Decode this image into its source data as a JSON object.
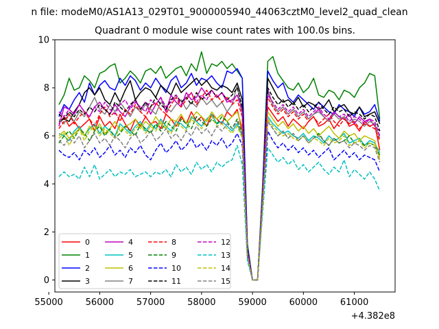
{
  "suptitle": "n file: modeM0/AS1A13_029T01_9000005940_44063cztM0_level2_quad_clean",
  "chart_data": {
    "type": "line",
    "title": "Quadrant 0 module wise count rates with 100.0s bins.",
    "xlabel": "",
    "ylabel": "",
    "x_offset_label": "+4.382e8",
    "xlim": [
      55120,
      61800
    ],
    "ylim": [
      -0.5,
      10
    ],
    "xticks": [
      55000,
      56000,
      57000,
      58000,
      59000,
      60000,
      61000
    ],
    "xtick_labels": [
      "55000",
      "56000",
      "57000",
      "58000",
      "59000",
      "60000",
      "61000"
    ],
    "yticks": [
      0,
      2,
      4,
      6,
      8,
      10
    ],
    "ytick_labels": [
      "0",
      "2",
      "4",
      "6",
      "8",
      "10"
    ],
    "grid": false,
    "legend_position": "lower-left",
    "x": [
      55200,
      55300,
      55400,
      55500,
      55600,
      55700,
      55800,
      55900,
      56000,
      56100,
      56200,
      56300,
      56400,
      56500,
      56600,
      56700,
      56800,
      56900,
      57000,
      57100,
      57200,
      57300,
      57400,
      57500,
      57600,
      57700,
      57800,
      57900,
      58000,
      58100,
      58200,
      58300,
      58400,
      58500,
      58600,
      58700,
      58800,
      58900,
      59000,
      59100,
      59200,
      59300,
      59400,
      59500,
      59600,
      59700,
      59800,
      59900,
      60000,
      60100,
      60200,
      60300,
      60400,
      60500,
      60600,
      60700,
      60800,
      60900,
      61000,
      61100,
      61200,
      61300,
      61400,
      61500
    ],
    "series": [
      {
        "name": "0",
        "color": "#ff0000",
        "dash": false,
        "values": [
          6.5,
          6.8,
          6.4,
          6.6,
          6.3,
          6.5,
          6.7,
          6.2,
          6.8,
          6.4,
          6.6,
          6.3,
          6.9,
          6.5,
          6.2,
          6.7,
          6.4,
          6.8,
          6.5,
          6.6,
          6.3,
          6.9,
          6.7,
          6.4,
          6.8,
          6.5,
          7.0,
          6.6,
          6.8,
          6.4,
          6.9,
          6.7,
          6.5,
          7.0,
          6.8,
          7.1,
          6.2,
          1.2,
          0.0,
          0.0,
          3.5,
          7.2,
          6.9,
          6.6,
          6.8,
          6.4,
          6.7,
          6.5,
          6.3,
          6.6,
          6.8,
          6.4,
          6.5,
          6.7,
          6.3,
          6.6,
          6.8,
          6.4,
          6.5,
          6.2,
          6.6,
          6.4,
          6.5,
          5.4
        ]
      },
      {
        "name": "1",
        "color": "#008000",
        "dash": false,
        "values": [
          7.3,
          7.7,
          8.4,
          7.9,
          8.0,
          8.5,
          8.3,
          8.0,
          8.6,
          8.7,
          8.9,
          9.0,
          8.2,
          8.4,
          8.7,
          8.5,
          8.2,
          8.7,
          8.8,
          8.6,
          8.9,
          8.4,
          8.6,
          8.8,
          8.9,
          8.5,
          9.0,
          8.7,
          9.5,
          8.6,
          9.0,
          8.9,
          9.1,
          8.8,
          9.0,
          8.7,
          8.4,
          1.5,
          0.0,
          0.0,
          4.0,
          9.1,
          9.3,
          8.6,
          8.3,
          8.0,
          7.9,
          8.2,
          7.8,
          8.0,
          8.4,
          7.7,
          7.6,
          7.9,
          7.8,
          7.5,
          7.9,
          7.8,
          7.6,
          8.0,
          8.2,
          8.6,
          8.5,
          6.7
        ]
      },
      {
        "name": "2",
        "color": "#0000ff",
        "dash": false,
        "values": [
          6.8,
          7.3,
          7.1,
          7.5,
          7.8,
          7.4,
          8.2,
          7.7,
          8.1,
          8.3,
          8.0,
          7.9,
          8.4,
          8.1,
          8.5,
          8.3,
          7.9,
          8.2,
          8.0,
          8.4,
          8.1,
          7.8,
          8.3,
          8.5,
          8.0,
          8.2,
          8.6,
          8.1,
          8.4,
          8.3,
          8.5,
          8.2,
          8.0,
          8.7,
          8.6,
          8.8,
          8.4,
          1.4,
          0.0,
          0.0,
          3.8,
          8.7,
          8.3,
          8.0,
          8.2,
          7.6,
          7.4,
          7.7,
          7.5,
          7.3,
          7.1,
          7.4,
          7.2,
          7.0,
          6.9,
          7.3,
          7.1,
          7.0,
          6.8,
          7.2,
          6.9,
          7.0,
          7.3,
          6.6
        ]
      },
      {
        "name": "3",
        "color": "#000000",
        "dash": false,
        "values": [
          6.6,
          6.7,
          6.6,
          7.0,
          7.3,
          7.8,
          8.0,
          7.7,
          8.0,
          7.5,
          7.3,
          7.8,
          7.4,
          7.9,
          8.3,
          7.5,
          7.8,
          8.0,
          7.9,
          7.6,
          8.1,
          7.9,
          7.7,
          8.2,
          7.8,
          8.0,
          8.2,
          8.4,
          8.1,
          8.3,
          8.0,
          7.9,
          8.1,
          8.0,
          7.8,
          8.2,
          7.5,
          1.0,
          0.0,
          0.0,
          3.3,
          8.4,
          8.0,
          7.6,
          7.4,
          7.5,
          7.3,
          7.6,
          7.2,
          7.4,
          7.3,
          7.1,
          7.2,
          7.5,
          7.0,
          7.2,
          7.3,
          7.0,
          6.9,
          7.2,
          6.8,
          6.9,
          7.0,
          6.5
        ]
      },
      {
        "name": "4",
        "color": "#bf00bf",
        "dash": false,
        "values": [
          6.4,
          7.2,
          7.1,
          6.9,
          7.3,
          7.0,
          6.8,
          7.2,
          7.4,
          7.1,
          6.9,
          7.3,
          7.0,
          6.8,
          7.2,
          7.5,
          7.1,
          7.4,
          6.9,
          7.3,
          7.6,
          7.0,
          7.7,
          7.4,
          7.2,
          7.8,
          7.5,
          7.6,
          8.0,
          7.7,
          7.9,
          7.6,
          7.8,
          7.4,
          7.5,
          7.7,
          7.1,
          1.1,
          0.0,
          0.0,
          3.4,
          7.9,
          7.3,
          7.0,
          7.2,
          6.9,
          7.1,
          6.8,
          7.0,
          6.7,
          6.9,
          7.1,
          6.8,
          6.6,
          7.0,
          6.8,
          6.7,
          6.9,
          6.5,
          6.8,
          6.6,
          6.7,
          6.4,
          6.2
        ]
      },
      {
        "name": "5",
        "color": "#00bfbf",
        "dash": false,
        "values": [
          6.1,
          6.0,
          5.8,
          6.2,
          6.4,
          6.0,
          6.3,
          6.5,
          6.1,
          6.4,
          6.2,
          6.0,
          6.5,
          6.3,
          6.1,
          6.4,
          6.6,
          6.2,
          6.5,
          6.3,
          6.7,
          6.4,
          6.2,
          6.6,
          6.5,
          6.3,
          6.8,
          6.6,
          6.4,
          6.7,
          6.9,
          6.5,
          6.6,
          6.4,
          6.2,
          6.5,
          6.0,
          1.0,
          0.0,
          0.0,
          3.2,
          6.8,
          6.5,
          6.3,
          6.1,
          6.2,
          6.0,
          5.9,
          6.1,
          5.8,
          6.0,
          5.9,
          5.7,
          6.0,
          5.8,
          5.9,
          6.1,
          5.7,
          5.8,
          5.9,
          5.6,
          5.8,
          5.7,
          5.3
        ]
      },
      {
        "name": "6",
        "color": "#bfbf00",
        "dash": false,
        "values": [
          6.0,
          6.2,
          5.9,
          6.1,
          6.3,
          6.0,
          6.4,
          6.2,
          6.5,
          6.1,
          6.3,
          6.6,
          6.2,
          6.4,
          6.5,
          6.7,
          6.3,
          6.6,
          6.4,
          6.8,
          6.5,
          6.3,
          6.7,
          6.6,
          6.9,
          6.5,
          6.7,
          7.0,
          6.8,
          6.6,
          7.0,
          6.7,
          6.9,
          6.6,
          6.8,
          7.0,
          6.4,
          1.0,
          0.0,
          0.0,
          3.3,
          7.0,
          6.7,
          6.4,
          6.6,
          6.3,
          6.5,
          6.2,
          6.4,
          6.1,
          6.3,
          6.0,
          6.2,
          6.4,
          6.1,
          5.9,
          6.2,
          6.0,
          6.1,
          5.8,
          6.0,
          5.9,
          5.8,
          5.0
        ]
      },
      {
        "name": "7",
        "color": "#808080",
        "dash": false,
        "values": [
          6.7,
          6.5,
          6.9,
          6.6,
          7.0,
          6.8,
          7.2,
          7.6,
          7.1,
          6.9,
          7.3,
          7.0,
          7.4,
          7.1,
          6.8,
          7.2,
          7.0,
          7.3,
          7.1,
          6.9,
          7.4,
          7.2,
          7.0,
          7.3,
          7.5,
          7.1,
          7.4,
          7.2,
          7.6,
          7.3,
          7.5,
          7.2,
          7.4,
          7.0,
          7.3,
          8.1,
          6.9,
          1.2,
          0.0,
          0.0,
          3.6,
          7.8,
          7.3,
          7.0,
          7.2,
          6.9,
          7.1,
          6.8,
          7.0,
          6.7,
          6.9,
          7.0,
          6.8,
          6.6,
          6.9,
          6.7,
          6.8,
          6.5,
          6.7,
          6.6,
          6.4,
          6.6,
          6.5,
          5.9
        ]
      },
      {
        "name": "8",
        "color": "#ff0000",
        "dash": true,
        "values": [
          6.3,
          6.6,
          6.9,
          6.5,
          6.8,
          7.0,
          6.7,
          6.4,
          6.9,
          7.2,
          6.8,
          7.0,
          6.6,
          7.1,
          6.9,
          7.3,
          7.0,
          6.8,
          7.2,
          7.4,
          7.1,
          6.9,
          7.3,
          7.6,
          7.2,
          7.5,
          7.8,
          7.3,
          7.6,
          7.9,
          7.5,
          7.7,
          7.4,
          7.6,
          7.3,
          7.5,
          6.8,
          1.1,
          0.0,
          0.0,
          3.4,
          7.6,
          7.2,
          6.9,
          7.1,
          6.8,
          7.0,
          6.7,
          6.9,
          6.6,
          6.8,
          6.5,
          6.7,
          6.9,
          6.6,
          6.4,
          6.7,
          6.5,
          6.6,
          6.3,
          6.5,
          6.4,
          6.3,
          5.8
        ]
      },
      {
        "name": "9",
        "color": "#008000",
        "dash": true,
        "values": [
          5.7,
          6.0,
          6.2,
          5.9,
          6.3,
          6.1,
          5.8,
          6.2,
          6.4,
          6.0,
          6.3,
          5.9,
          6.1,
          6.4,
          6.2,
          6.0,
          6.5,
          6.3,
          6.1,
          6.5,
          6.2,
          6.6,
          6.4,
          6.2,
          6.7,
          6.5,
          6.3,
          6.8,
          6.6,
          6.4,
          6.7,
          6.5,
          6.8,
          6.6,
          6.3,
          6.7,
          6.1,
          1.0,
          0.0,
          0.0,
          3.2,
          6.6,
          6.3,
          6.0,
          6.2,
          5.9,
          6.1,
          5.8,
          6.0,
          5.7,
          5.9,
          6.1,
          5.8,
          5.6,
          5.9,
          5.7,
          5.8,
          6.0,
          5.7,
          5.8,
          5.6,
          5.7,
          5.6,
          5.2
        ]
      },
      {
        "name": "10",
        "color": "#0000ff",
        "dash": true,
        "values": [
          5.4,
          5.2,
          5.1,
          5.3,
          5.0,
          5.4,
          5.2,
          5.5,
          5.1,
          5.3,
          5.6,
          5.2,
          5.4,
          5.1,
          5.5,
          5.3,
          5.6,
          5.2,
          5.0,
          5.4,
          5.7,
          5.3,
          5.5,
          5.8,
          5.4,
          5.6,
          5.9,
          5.5,
          5.7,
          5.4,
          5.8,
          5.6,
          5.9,
          5.5,
          5.7,
          6.1,
          5.6,
          0.9,
          0.0,
          0.0,
          3.0,
          6.2,
          5.8,
          5.5,
          5.7,
          5.4,
          5.6,
          5.3,
          5.5,
          5.2,
          5.4,
          5.1,
          5.3,
          5.5,
          5.0,
          5.2,
          5.4,
          5.1,
          5.3,
          5.0,
          5.2,
          5.1,
          5.0,
          4.5
        ]
      },
      {
        "name": "11",
        "color": "#000000",
        "dash": true,
        "values": [
          6.9,
          6.7,
          7.0,
          6.8,
          7.1,
          6.9,
          7.2,
          7.0,
          7.3,
          7.1,
          6.9,
          7.4,
          7.2,
          7.0,
          7.3,
          7.5,
          7.1,
          7.4,
          7.2,
          7.6,
          7.3,
          7.1,
          7.5,
          7.7,
          7.4,
          7.6,
          7.3,
          7.8,
          7.5,
          7.7,
          7.9,
          7.6,
          7.8,
          7.5,
          7.7,
          8.0,
          7.2,
          1.3,
          0.0,
          0.0,
          3.6,
          8.0,
          7.6,
          7.3,
          7.5,
          7.2,
          7.4,
          7.1,
          7.3,
          7.0,
          7.2,
          7.4,
          7.1,
          6.9,
          7.2,
          7.0,
          7.1,
          6.8,
          7.0,
          6.9,
          6.7,
          6.9,
          6.8,
          6.2
        ]
      },
      {
        "name": "12",
        "color": "#bf00bf",
        "dash": true,
        "values": [
          7.0,
          6.8,
          7.1,
          6.9,
          7.3,
          7.0,
          6.8,
          7.2,
          7.0,
          7.4,
          7.1,
          6.9,
          7.3,
          7.5,
          7.1,
          7.4,
          7.2,
          7.0,
          7.5,
          7.3,
          7.6,
          7.2,
          7.4,
          7.7,
          7.3,
          7.6,
          7.8,
          7.4,
          7.7,
          7.5,
          7.9,
          7.6,
          7.8,
          7.5,
          7.4,
          7.7,
          7.0,
          1.2,
          0.0,
          0.0,
          3.5,
          7.7,
          7.4,
          7.1,
          7.3,
          7.0,
          7.2,
          6.9,
          7.1,
          6.8,
          7.0,
          7.2,
          6.9,
          6.7,
          7.0,
          6.8,
          6.9,
          6.6,
          6.8,
          6.7,
          6.5,
          6.7,
          6.6,
          6.0
        ]
      },
      {
        "name": "13",
        "color": "#00bfbf",
        "dash": true,
        "values": [
          4.3,
          4.5,
          4.3,
          4.4,
          4.2,
          4.7,
          4.3,
          4.8,
          4.2,
          4.4,
          4.6,
          4.3,
          4.5,
          4.4,
          4.6,
          4.3,
          4.4,
          4.5,
          4.3,
          4.5,
          4.4,
          4.6,
          4.3,
          4.8,
          4.5,
          4.7,
          4.4,
          4.9,
          4.6,
          4.8,
          4.5,
          4.9,
          4.7,
          4.9,
          5.0,
          5.6,
          4.8,
          0.8,
          0.0,
          0.0,
          2.8,
          5.5,
          5.2,
          4.9,
          5.1,
          4.8,
          5.0,
          4.6,
          4.8,
          4.5,
          4.7,
          4.9,
          4.6,
          4.4,
          4.7,
          4.5,
          5.0,
          4.3,
          4.6,
          4.4,
          4.2,
          4.5,
          4.2,
          3.7
        ]
      },
      {
        "name": "14",
        "color": "#bfbf00",
        "dash": true,
        "values": [
          5.9,
          6.1,
          5.6,
          6.0,
          6.3,
          5.8,
          6.2,
          6.4,
          6.0,
          6.3,
          6.1,
          5.9,
          6.4,
          6.2,
          6.0,
          6.3,
          6.5,
          6.1,
          6.4,
          6.2,
          6.6,
          6.3,
          6.1,
          6.5,
          6.4,
          6.2,
          6.7,
          6.5,
          6.3,
          6.6,
          6.8,
          6.4,
          6.5,
          6.3,
          6.1,
          6.4,
          5.9,
          1.0,
          0.0,
          0.0,
          3.1,
          6.7,
          6.4,
          6.2,
          6.0,
          6.1,
          5.9,
          5.8,
          6.0,
          5.7,
          5.9,
          5.8,
          5.6,
          5.9,
          5.7,
          5.8,
          6.0,
          5.6,
          5.7,
          5.8,
          5.5,
          5.7,
          5.6,
          5.1
        ]
      },
      {
        "name": "15",
        "color": "#808080",
        "dash": true,
        "values": [
          5.8,
          5.6,
          5.9,
          5.7,
          6.0,
          5.5,
          5.8,
          6.1,
          5.7,
          5.9,
          5.6,
          6.0,
          5.8,
          5.5,
          5.9,
          6.1,
          5.7,
          5.9,
          6.2,
          5.8,
          6.0,
          6.3,
          5.9,
          6.1,
          5.8,
          6.2,
          6.0,
          6.4,
          6.1,
          6.3,
          6.0,
          6.4,
          6.2,
          6.5,
          6.3,
          6.6,
          6.0,
          1.0,
          0.0,
          0.0,
          3.2,
          6.6,
          6.3,
          6.0,
          6.2,
          5.9,
          6.1,
          5.8,
          6.0,
          5.7,
          5.9,
          6.0,
          5.8,
          5.6,
          5.9,
          5.7,
          5.8,
          5.5,
          5.7,
          5.6,
          5.4,
          5.6,
          5.5,
          4.9
        ]
      }
    ]
  }
}
